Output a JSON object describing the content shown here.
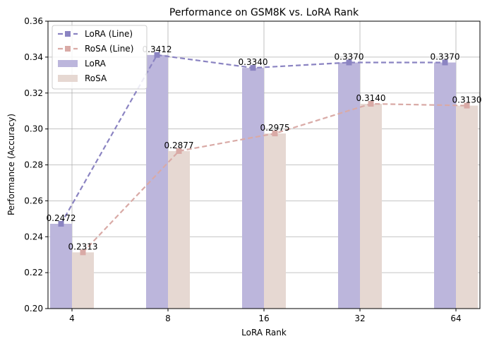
{
  "chart_data": {
    "type": "bar",
    "title": "Performance on GSM8K vs. LoRA Rank",
    "xlabel": "LoRA Rank",
    "ylabel": "Performance (Accuracy)",
    "categories": [
      "4",
      "8",
      "16",
      "32",
      "64"
    ],
    "ylim": [
      0.2,
      0.36
    ],
    "yticks": [
      0.2,
      0.22,
      0.24,
      0.26,
      0.28,
      0.3,
      0.32,
      0.34,
      0.36
    ],
    "ytick_labels": [
      "0.20",
      "0.22",
      "0.24",
      "0.26",
      "0.28",
      "0.30",
      "0.32",
      "0.34",
      "0.36"
    ],
    "grid": true,
    "legend_position": "top-left",
    "series": [
      {
        "name": "LoRA",
        "kind": "bar",
        "values": [
          0.2472,
          0.3412,
          0.334,
          0.337,
          0.337
        ],
        "labels": [
          "0.2472",
          "0.3412",
          "0.3340",
          "0.3370",
          "0.3370"
        ],
        "color": "#bcb6dc"
      },
      {
        "name": "RoSA",
        "kind": "bar",
        "values": [
          0.2313,
          0.2877,
          0.2975,
          0.314,
          0.313
        ],
        "labels": [
          "0.2313",
          "0.2877",
          "0.2975",
          "0.3140",
          "0.3130"
        ],
        "color": "#e6d8d2"
      },
      {
        "name": "LoRA (Line)",
        "kind": "line",
        "values": [
          0.2472,
          0.3412,
          0.334,
          0.337,
          0.337
        ],
        "color": "#8b84c2"
      },
      {
        "name": "RoSA (Line)",
        "kind": "line",
        "values": [
          0.2313,
          0.2877,
          0.2975,
          0.314,
          0.313
        ],
        "color": "#d9aaa6"
      }
    ],
    "legend": [
      "LoRA (Line)",
      "RoSA (Line)",
      "LoRA",
      "RoSA"
    ]
  }
}
